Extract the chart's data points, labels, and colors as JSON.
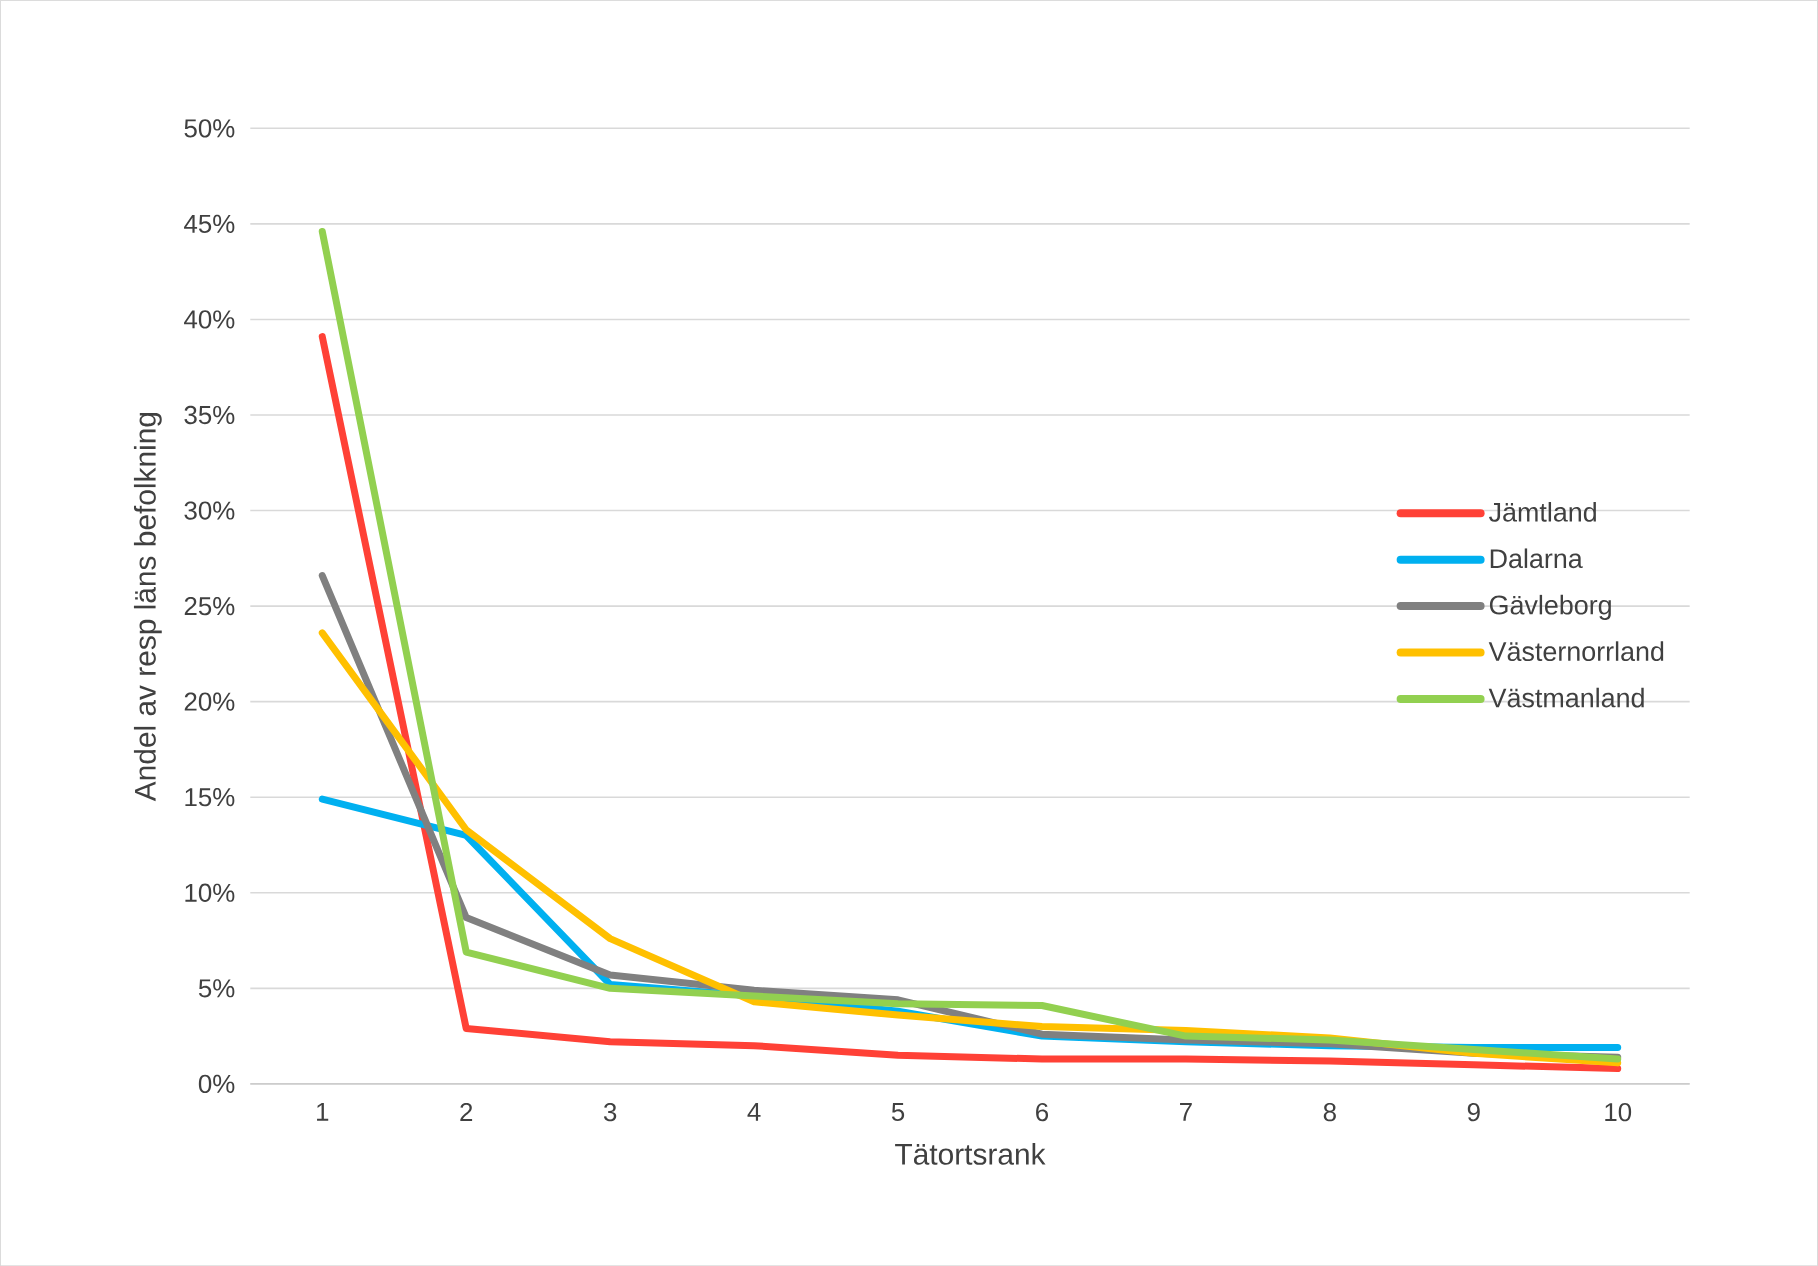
{
  "chart_data": {
    "type": "line",
    "xlabel": "Tätortsrank",
    "ylabel": "Andel av resp läns befolkning",
    "categories": [
      "1",
      "2",
      "3",
      "4",
      "5",
      "6",
      "7",
      "8",
      "9",
      "10"
    ],
    "series": [
      {
        "name": "Jämtland",
        "color": "#ff4136",
        "values": [
          39.1,
          2.9,
          2.2,
          2.0,
          1.5,
          1.3,
          1.3,
          1.2,
          1.0,
          0.8
        ]
      },
      {
        "name": "Dalarna",
        "color": "#00b0f0",
        "values": [
          14.9,
          13.0,
          5.2,
          4.6,
          3.8,
          2.5,
          2.2,
          2.0,
          1.9,
          1.9
        ]
      },
      {
        "name": "Gävleborg",
        "color": "#808080",
        "values": [
          26.6,
          8.7,
          5.7,
          4.9,
          4.4,
          2.6,
          2.3,
          2.1,
          1.6,
          1.4
        ]
      },
      {
        "name": "Västernorrland",
        "color": "#ffc000",
        "values": [
          23.6,
          13.3,
          7.6,
          4.3,
          3.6,
          3.0,
          2.8,
          2.4,
          1.6,
          1.1
        ]
      },
      {
        "name": "Västmanland",
        "color": "#92d050",
        "values": [
          44.6,
          6.9,
          5.0,
          4.6,
          4.2,
          4.1,
          2.5,
          2.3,
          1.8,
          1.3
        ]
      }
    ],
    "ylim": [
      0,
      50
    ],
    "yticks": [
      {
        "value": 0,
        "label": "0%"
      },
      {
        "value": 5,
        "label": "5%"
      },
      {
        "value": 10,
        "label": "10%"
      },
      {
        "value": 15,
        "label": "15%"
      },
      {
        "value": 20,
        "label": "20%"
      },
      {
        "value": 25,
        "label": "25%"
      },
      {
        "value": 30,
        "label": "30%"
      },
      {
        "value": 35,
        "label": "35%"
      },
      {
        "value": 40,
        "label": "40%"
      },
      {
        "value": 45,
        "label": "45%"
      },
      {
        "value": 50,
        "label": "50%"
      }
    ],
    "grid": "y",
    "legend": "right",
    "marker": "none",
    "line_style": "solid"
  }
}
